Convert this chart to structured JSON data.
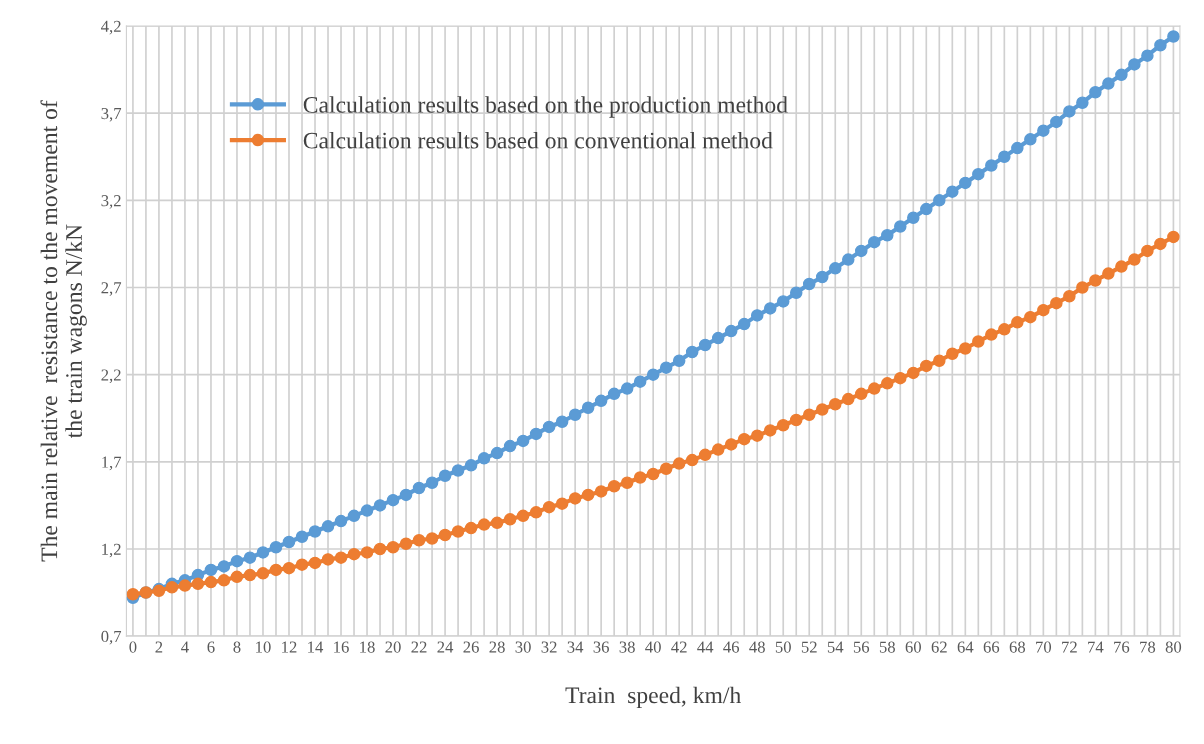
{
  "chart_data": {
    "type": "line",
    "xlabel": "Train  speed, km/h",
    "ylabel": "The main relative  resistance to the movement of\nthe train wagons N/kN",
    "categories": [
      "0",
      null,
      "2",
      null,
      "4",
      null,
      "6",
      null,
      "8",
      null,
      "10",
      null,
      "12",
      null,
      "14",
      null,
      "16",
      null,
      "18",
      null,
      "20",
      null,
      "22",
      null,
      "24",
      null,
      "26",
      null,
      "28",
      null,
      "30",
      null,
      "32",
      null,
      "34",
      null,
      "36",
      null,
      "38",
      null,
      "40",
      null,
      "42",
      null,
      "44",
      null,
      "46",
      null,
      "48",
      null,
      "50",
      null,
      "52",
      null,
      "54",
      null,
      "56",
      null,
      "58",
      null,
      "60",
      null,
      "62",
      null,
      "64",
      null,
      "66",
      null,
      "68",
      null,
      "70",
      null,
      "72",
      null,
      "74",
      null,
      "76",
      null,
      "78",
      null,
      "80"
    ],
    "series": [
      {
        "name": "Calculation results based on the production method",
        "color": "#5b9bd5",
        "values": [
          0.92,
          0.95,
          0.97,
          1.0,
          1.02,
          1.05,
          1.08,
          1.1,
          1.13,
          1.15,
          1.18,
          1.21,
          1.24,
          1.27,
          1.3,
          1.33,
          1.36,
          1.39,
          1.42,
          1.45,
          1.48,
          1.51,
          1.55,
          1.58,
          1.62,
          1.65,
          1.68,
          1.72,
          1.75,
          1.79,
          1.82,
          1.86,
          1.9,
          1.93,
          1.97,
          2.01,
          2.05,
          2.09,
          2.12,
          2.16,
          2.2,
          2.24,
          2.28,
          2.33,
          2.37,
          2.41,
          2.45,
          2.49,
          2.54,
          2.58,
          2.62,
          2.67,
          2.72,
          2.76,
          2.81,
          2.86,
          2.91,
          2.96,
          3.0,
          3.05,
          3.1,
          3.15,
          3.2,
          3.25,
          3.3,
          3.35,
          3.4,
          3.45,
          3.5,
          3.55,
          3.6,
          3.65,
          3.71,
          3.76,
          3.82,
          3.87,
          3.92,
          3.98,
          4.03,
          4.09,
          4.14
        ]
      },
      {
        "name": "Calculation results based on conventional method",
        "color": "#ed7d31",
        "values": [
          0.94,
          0.95,
          0.96,
          0.98,
          0.99,
          1.0,
          1.01,
          1.02,
          1.04,
          1.05,
          1.06,
          1.08,
          1.09,
          1.11,
          1.12,
          1.14,
          1.15,
          1.17,
          1.18,
          1.2,
          1.21,
          1.23,
          1.25,
          1.26,
          1.28,
          1.3,
          1.32,
          1.34,
          1.35,
          1.37,
          1.39,
          1.41,
          1.44,
          1.46,
          1.49,
          1.51,
          1.53,
          1.56,
          1.58,
          1.61,
          1.63,
          1.66,
          1.69,
          1.71,
          1.74,
          1.77,
          1.8,
          1.83,
          1.85,
          1.88,
          1.91,
          1.94,
          1.97,
          2.0,
          2.03,
          2.06,
          2.09,
          2.12,
          2.15,
          2.18,
          2.21,
          2.25,
          2.28,
          2.32,
          2.35,
          2.39,
          2.43,
          2.46,
          2.5,
          2.53,
          2.57,
          2.61,
          2.65,
          2.7,
          2.74,
          2.78,
          2.82,
          2.86,
          2.91,
          2.95,
          2.99
        ]
      }
    ],
    "ylim": [
      0.7,
      4.2
    ],
    "yticks": [
      {
        "value": 0.7,
        "label": "0,7"
      },
      {
        "value": 1.2,
        "label": "1,2"
      },
      {
        "value": 1.7,
        "label": "1,7"
      },
      {
        "value": 2.2,
        "label": "2,2"
      },
      {
        "value": 2.7,
        "label": "2,7"
      },
      {
        "value": 3.2,
        "label": "3,2"
      },
      {
        "value": 3.7,
        "label": "3,7"
      },
      {
        "value": 4.2,
        "label": "4,2"
      }
    ],
    "grid": true,
    "legend": "top left",
    "marker": "circle",
    "line_style": "solid"
  }
}
